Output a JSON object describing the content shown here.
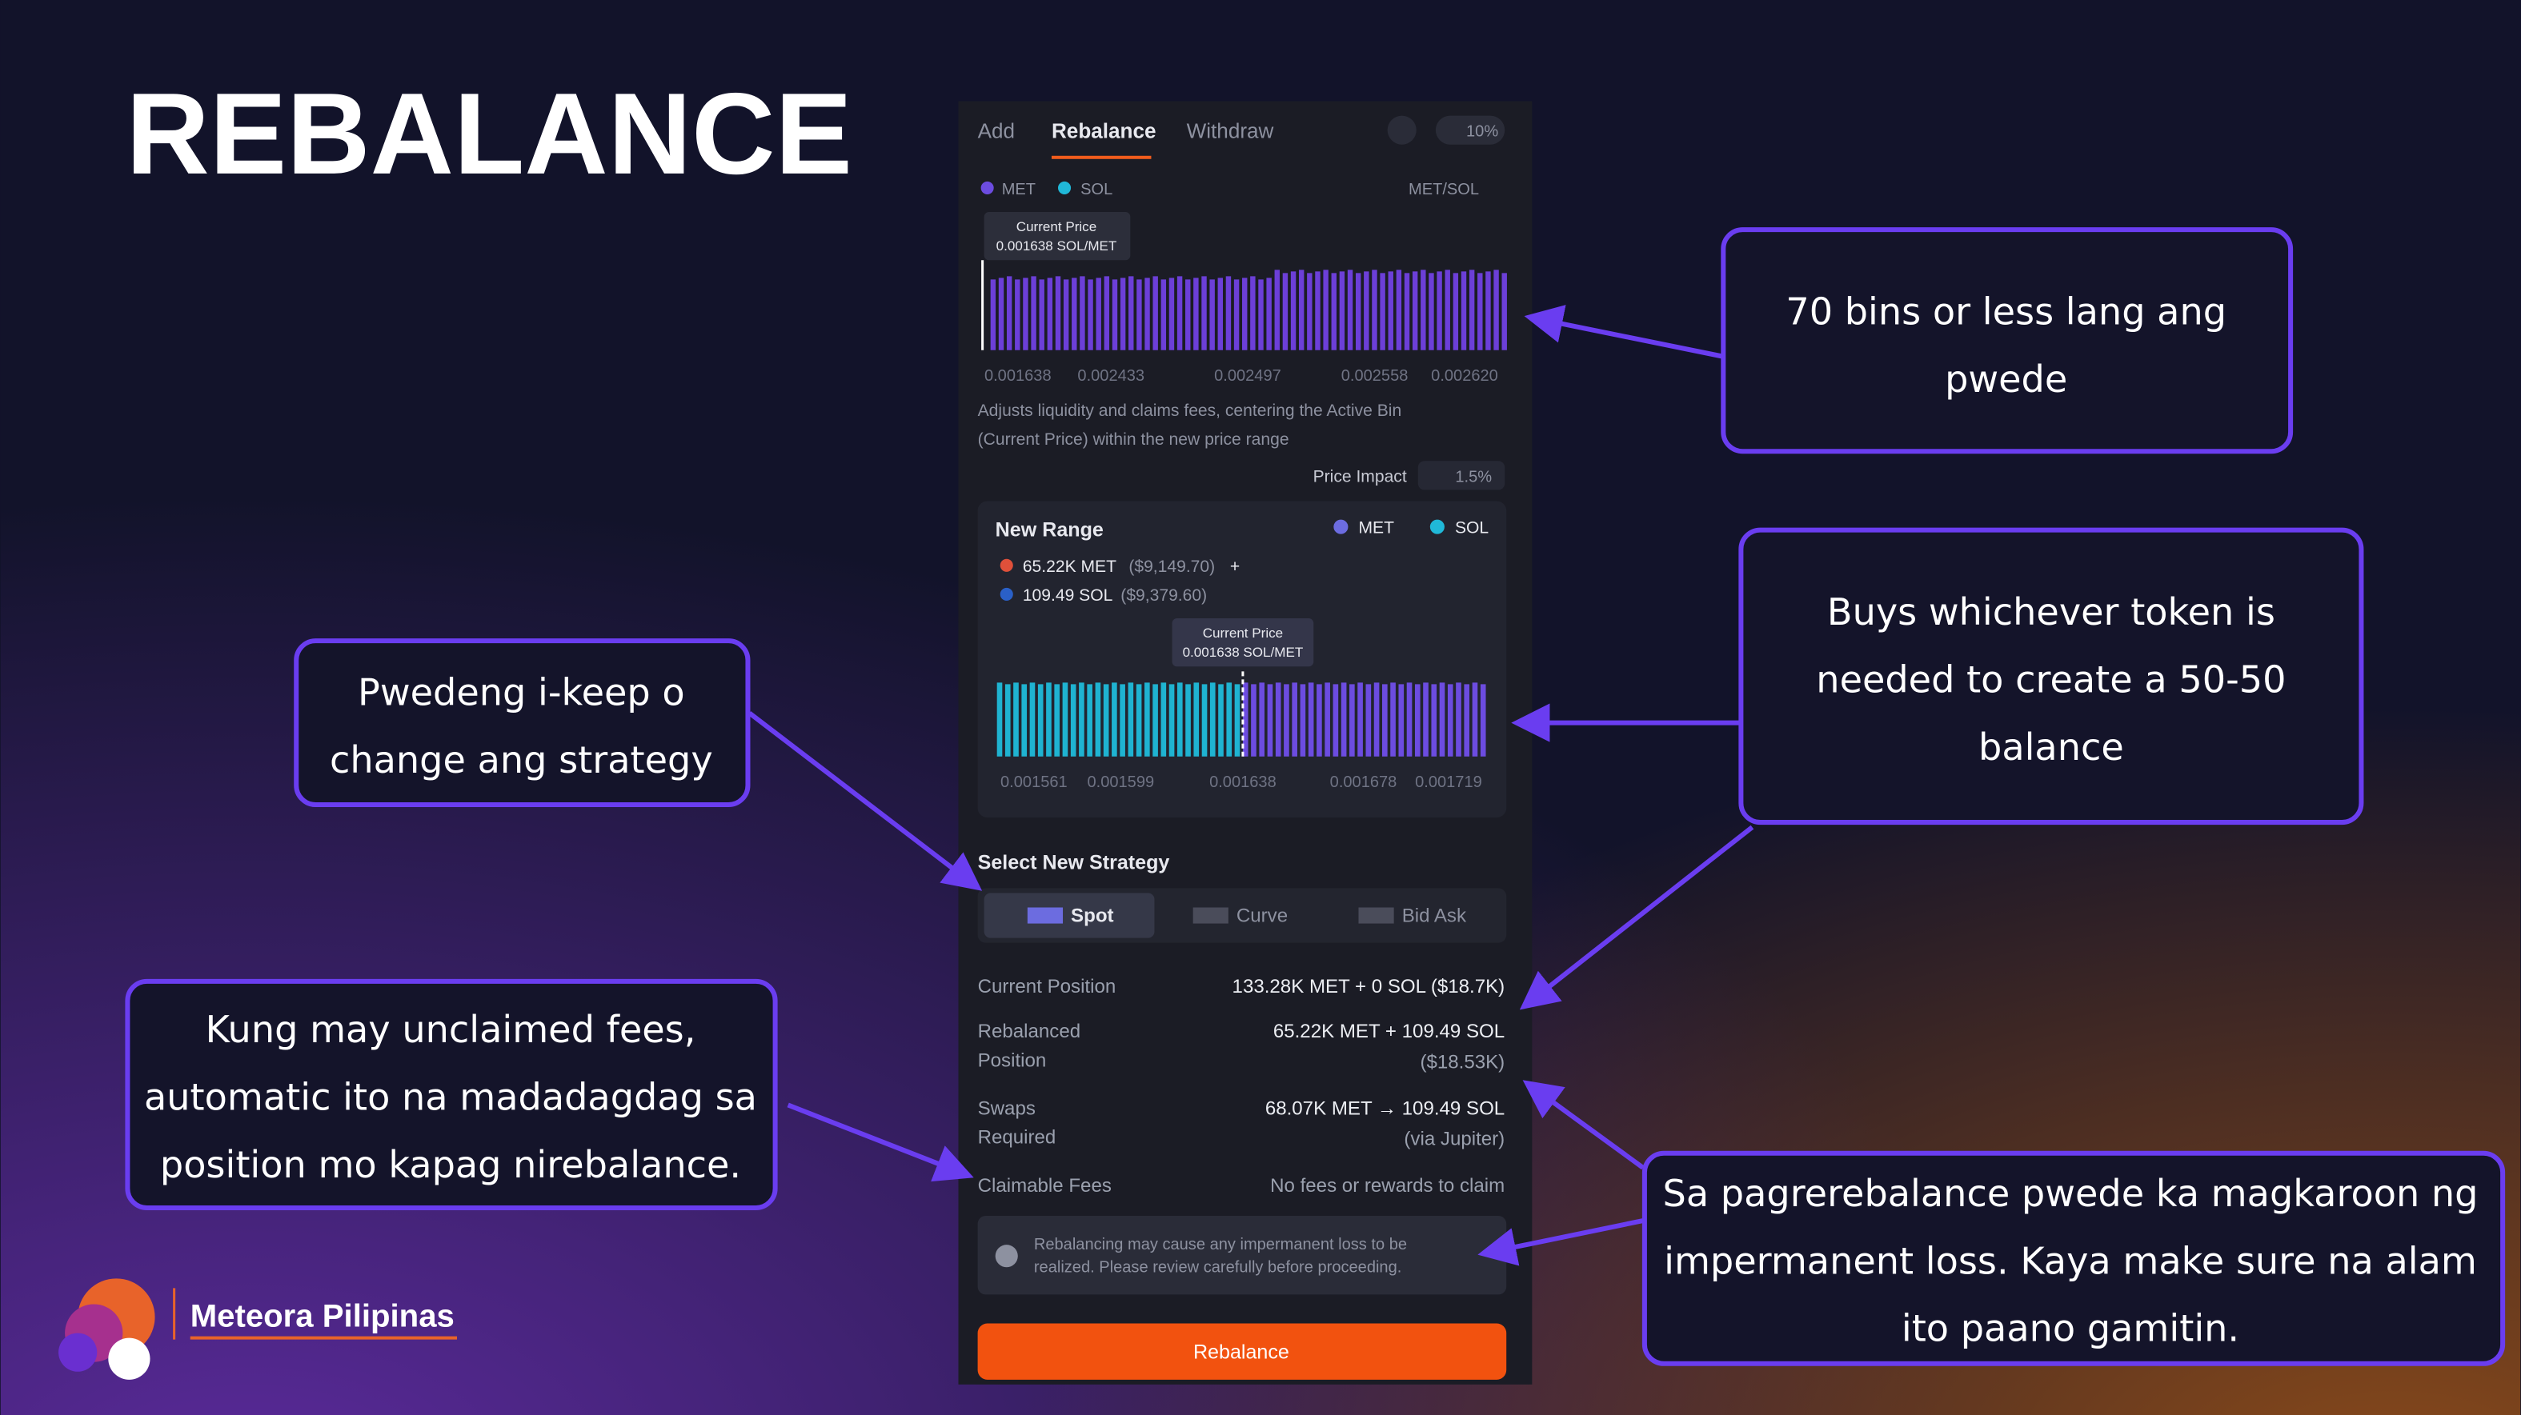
{
  "title": "REBALANCE",
  "panel": {
    "tabs": [
      "Add",
      "Rebalance",
      "Withdraw"
    ],
    "slippage": "10%",
    "legend": [
      "MET",
      "SOL"
    ],
    "pair": "MET/SOL",
    "current_price_label": "Current Price",
    "current_price": "0.001638 SOL/MET",
    "top_axis": [
      "0.001638",
      "0.002433",
      "0.002497",
      "0.002558",
      "0.002620"
    ],
    "description": [
      "Adjusts liquidity and claims fees, centering the Active Bin",
      "(Current Price) within the new price range"
    ],
    "price_impact_label": "Price Impact",
    "price_impact": "1.5%",
    "new_range": {
      "title": "New Range",
      "legend": [
        "MET",
        "SOL"
      ],
      "met_amount": "65.22K MET",
      "met_usd": "($9,149.70)",
      "plus": "+",
      "sol_amount": "109.49 SOL",
      "sol_usd": "($9,379.60)",
      "current_price_label": "Current Price",
      "current_price": "0.001638 SOL/MET",
      "axis": [
        "0.001561",
        "0.001599",
        "0.001638",
        "0.001678",
        "0.001719"
      ]
    },
    "strategy_title": "Select New Strategy",
    "strategies": [
      "Spot",
      "Curve",
      "Bid Ask"
    ],
    "rows": [
      {
        "label": [
          "Current Position"
        ],
        "value": [
          "133.28K MET  +  0 SOL ($18.7K)"
        ]
      },
      {
        "label": [
          "Rebalanced",
          "Position"
        ],
        "value": [
          "65.22K MET  +  109.49 SOL",
          "($18.53K)"
        ]
      },
      {
        "label": [
          "Swaps",
          "Required"
        ],
        "value": [
          "68.07K MET  →  109.49 SOL",
          "(via Jupiter)"
        ]
      },
      {
        "label": [
          "Claimable Fees"
        ],
        "value": [
          "No fees or rewards to claim"
        ]
      }
    ],
    "warning": [
      "Rebalancing may cause any impermanent loss to be",
      "realized. Please review carefully before proceeding."
    ],
    "button": "Rebalance"
  },
  "callouts": [
    {
      "lines": [
        "70 bins or less lang ang",
        "pwede"
      ]
    },
    {
      "lines": [
        "Buys whichever token is",
        "needed to create a 50-50",
        "balance"
      ]
    },
    {
      "lines": [
        "Pwedeng i-keep o",
        "change ang strategy"
      ]
    },
    {
      "lines": [
        "Kung may unclaimed fees,",
        "automatic ito na madadagdag sa",
        "position mo kapag nirebalance."
      ]
    },
    {
      "lines": [
        "Sa pagrerebalance pwede ka magkaroon ng",
        "impermanent loss. Kaya make sure na alam",
        "ito paano gamitin."
      ]
    }
  ],
  "brand": "Meteora Pilipinas"
}
